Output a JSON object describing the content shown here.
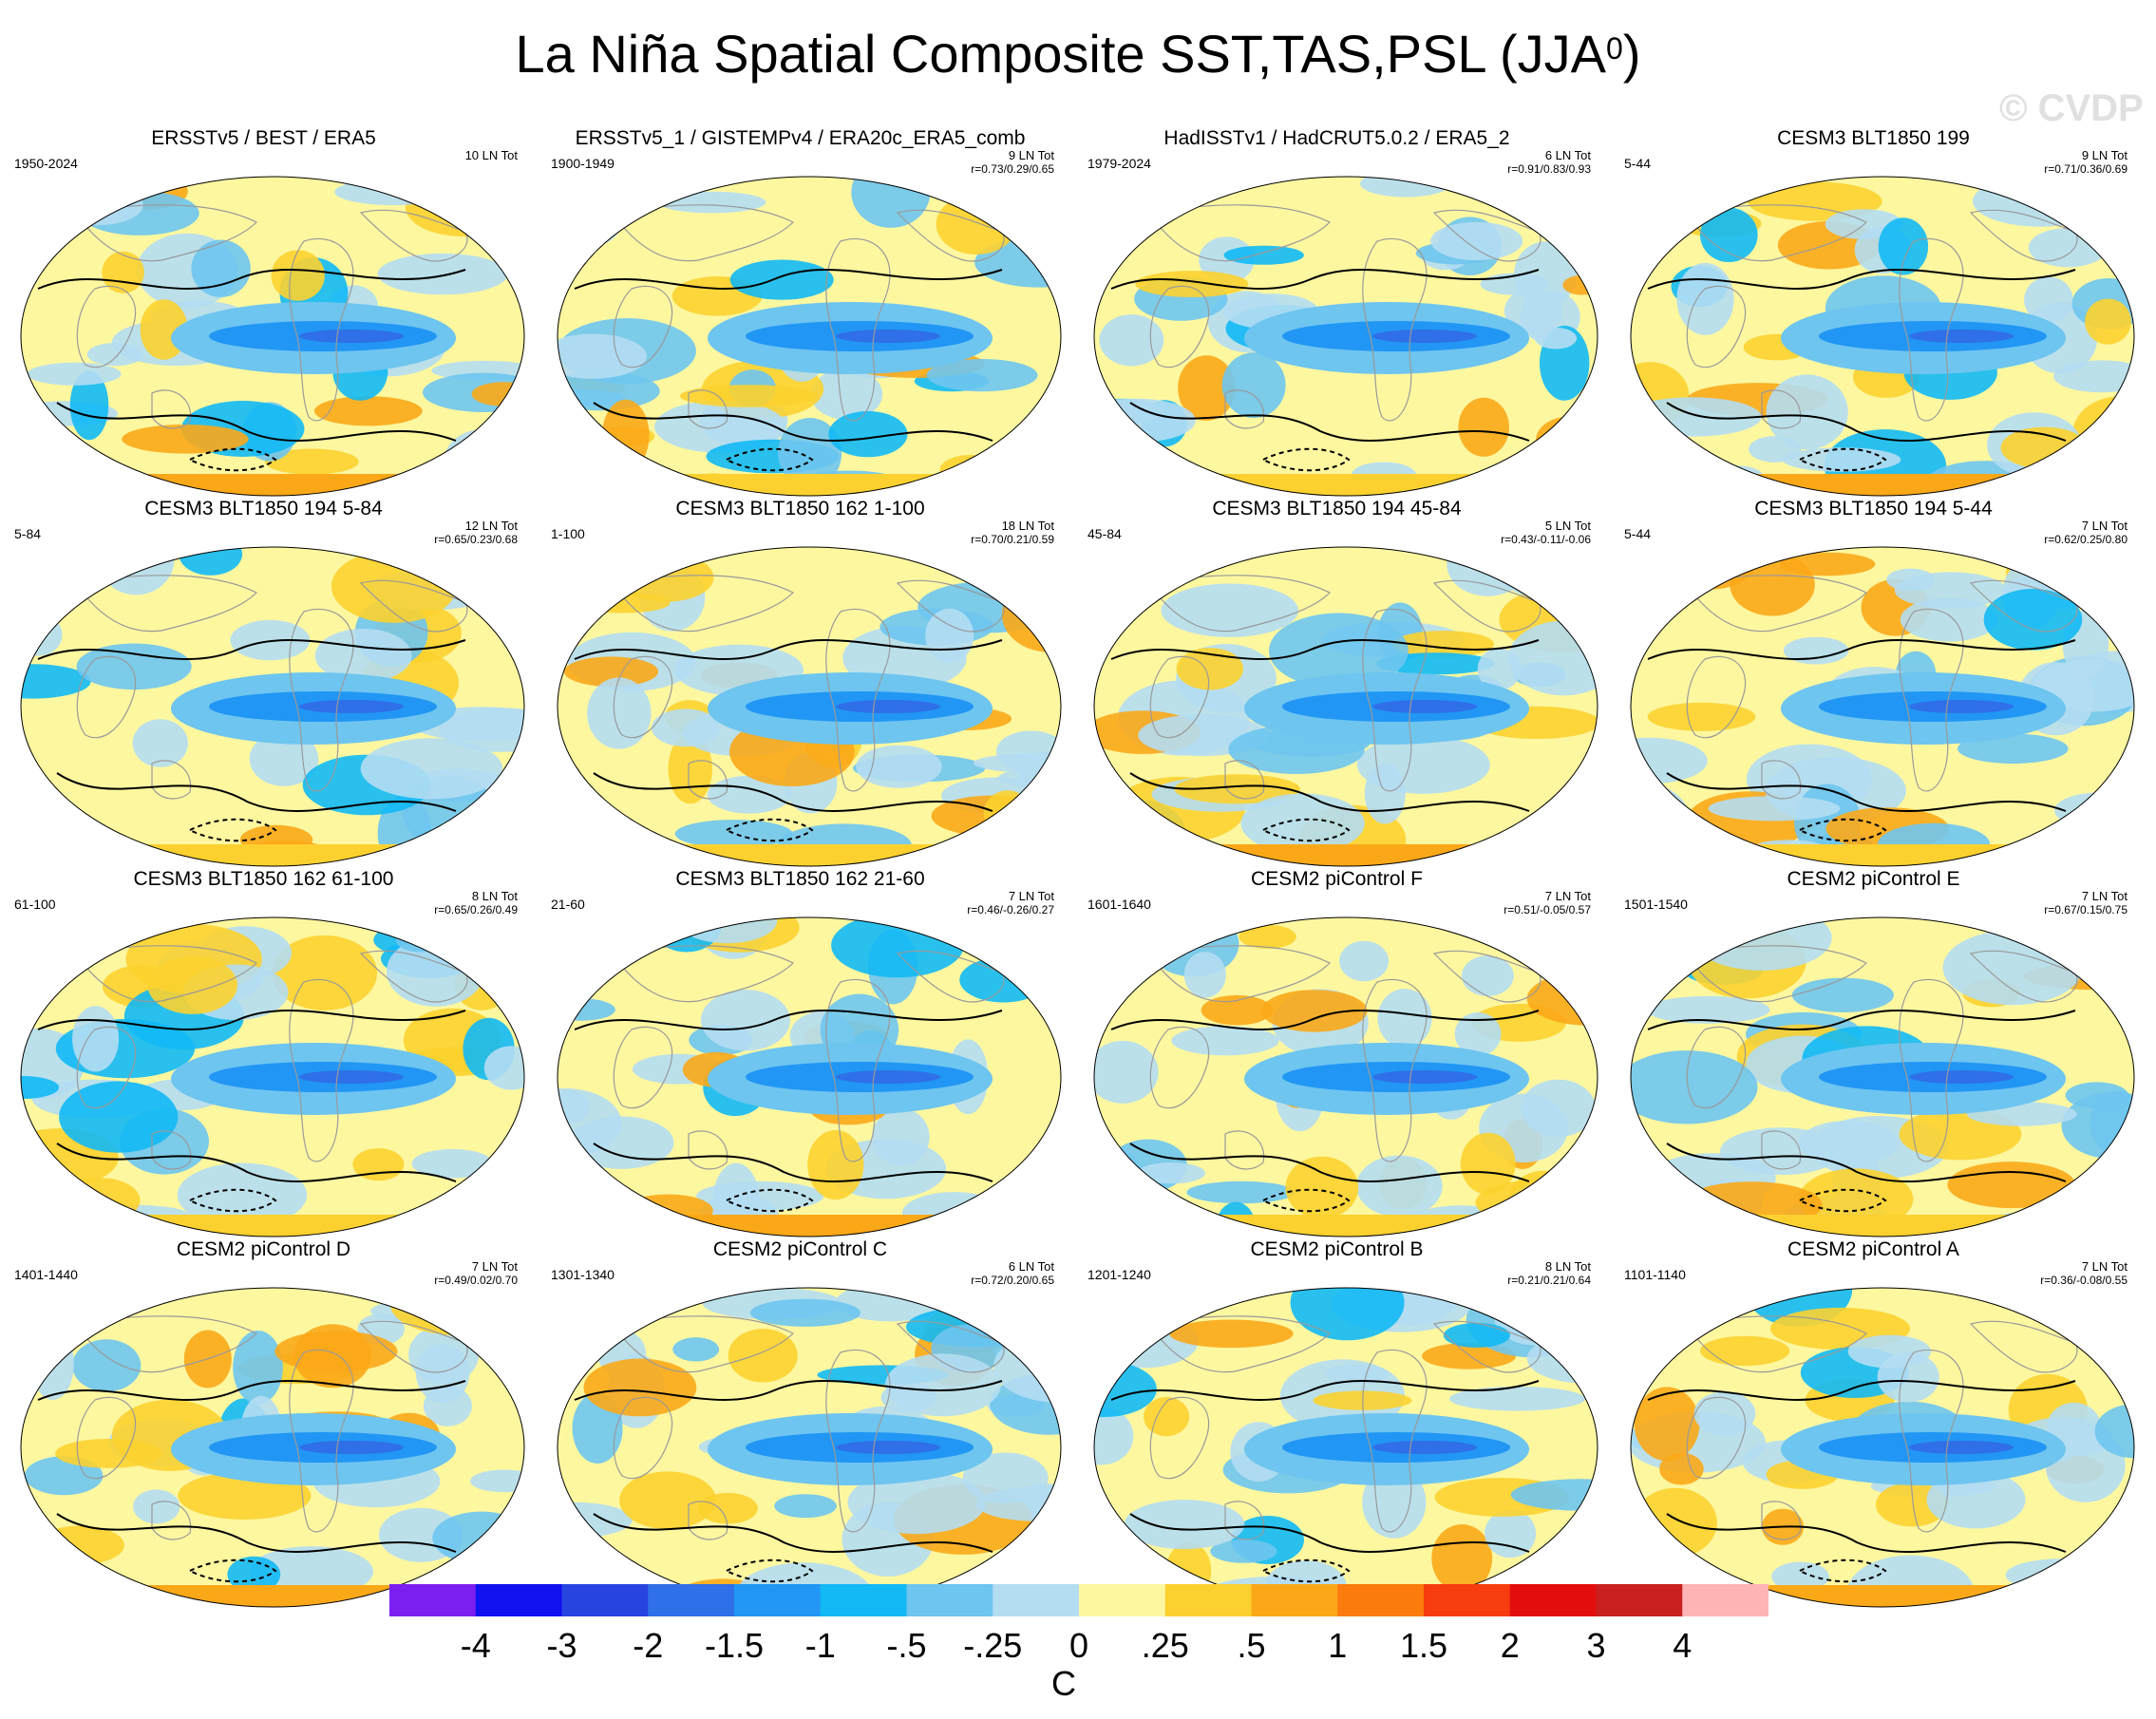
{
  "title": {
    "main": "La Niña Spatial Composite SST,TAS,PSL (JJA",
    "sup": "0",
    "close": ")"
  },
  "watermark": "© CVDP",
  "panels": [
    {
      "title": "ERSSTv5 / BEST / ERA5",
      "years": "1950-2024",
      "count": "10 LN Tot",
      "corr": ""
    },
    {
      "title": "ERSSTv5_1 / GISTEMPv4 / ERA20c_ERA5_comb",
      "years": "1900-1949",
      "count": "9 LN Tot",
      "corr": "r=0.73/0.29/0.65"
    },
    {
      "title": "HadISSTv1 / HadCRUT5.0.2 / ERA5_2",
      "years": "1979-2024",
      "count": "6 LN Tot",
      "corr": "r=0.91/0.83/0.93"
    },
    {
      "title": "CESM3 BLT1850 199",
      "years": "5-44",
      "count": "9 LN Tot",
      "corr": "r=0.71/0.36/0.69"
    },
    {
      "title": "CESM3 BLT1850 194 5-84",
      "years": "5-84",
      "count": "12 LN Tot",
      "corr": "r=0.65/0.23/0.68"
    },
    {
      "title": "CESM3 BLT1850 162 1-100",
      "years": "1-100",
      "count": "18 LN Tot",
      "corr": "r=0.70/0.21/0.59"
    },
    {
      "title": "CESM3 BLT1850 194 45-84",
      "years": "45-84",
      "count": "5 LN Tot",
      "corr": "r=0.43/-0.11/-0.06"
    },
    {
      "title": "CESM3 BLT1850 194 5-44",
      "years": "5-44",
      "count": "7 LN Tot",
      "corr": "r=0.62/0.25/0.80"
    },
    {
      "title": "CESM3 BLT1850 162 61-100",
      "years": "61-100",
      "count": "8 LN Tot",
      "corr": "r=0.65/0.26/0.49"
    },
    {
      "title": "CESM3 BLT1850 162 21-60",
      "years": "21-60",
      "count": "7 LN Tot",
      "corr": "r=0.46/-0.26/0.27"
    },
    {
      "title": "CESM2 piControl F",
      "years": "1601-1640",
      "count": "7 LN Tot",
      "corr": "r=0.51/-0.05/0.57"
    },
    {
      "title": "CESM2 piControl E",
      "years": "1501-1540",
      "count": "7 LN Tot",
      "corr": "r=0.67/0.15/0.75"
    },
    {
      "title": "CESM2 piControl D",
      "years": "1401-1440",
      "count": "7 LN Tot",
      "corr": "r=0.49/0.02/0.70"
    },
    {
      "title": "CESM2 piControl C",
      "years": "1301-1340",
      "count": "6 LN Tot",
      "corr": "r=0.72/0.20/0.65"
    },
    {
      "title": "CESM2 piControl B",
      "years": "1201-1240",
      "count": "8 LN Tot",
      "corr": "r=0.21/0.21/0.64"
    },
    {
      "title": "CESM2 piControl A",
      "years": "1101-1140",
      "count": "7 LN Tot",
      "corr": "r=0.36/-0.08/0.55"
    }
  ],
  "colorbar": {
    "colors": [
      "#7b1ff0",
      "#1010f0",
      "#2844e0",
      "#2f6fe8",
      "#2196f5",
      "#12b9f5",
      "#6ec5ef",
      "#b4ddf2",
      "#fdf7a0",
      "#fcd12f",
      "#fba818",
      "#fb7b0c",
      "#f73c0f",
      "#e30d0d",
      "#c91f1f",
      "#feb4b4"
    ],
    "labels": [
      "-4",
      "-3",
      "-2",
      "-1.5",
      "-1",
      "-.5",
      "-.25",
      "0",
      ".25",
      ".5",
      "1",
      "1.5",
      "2",
      "3",
      "4"
    ],
    "units": "C"
  }
}
